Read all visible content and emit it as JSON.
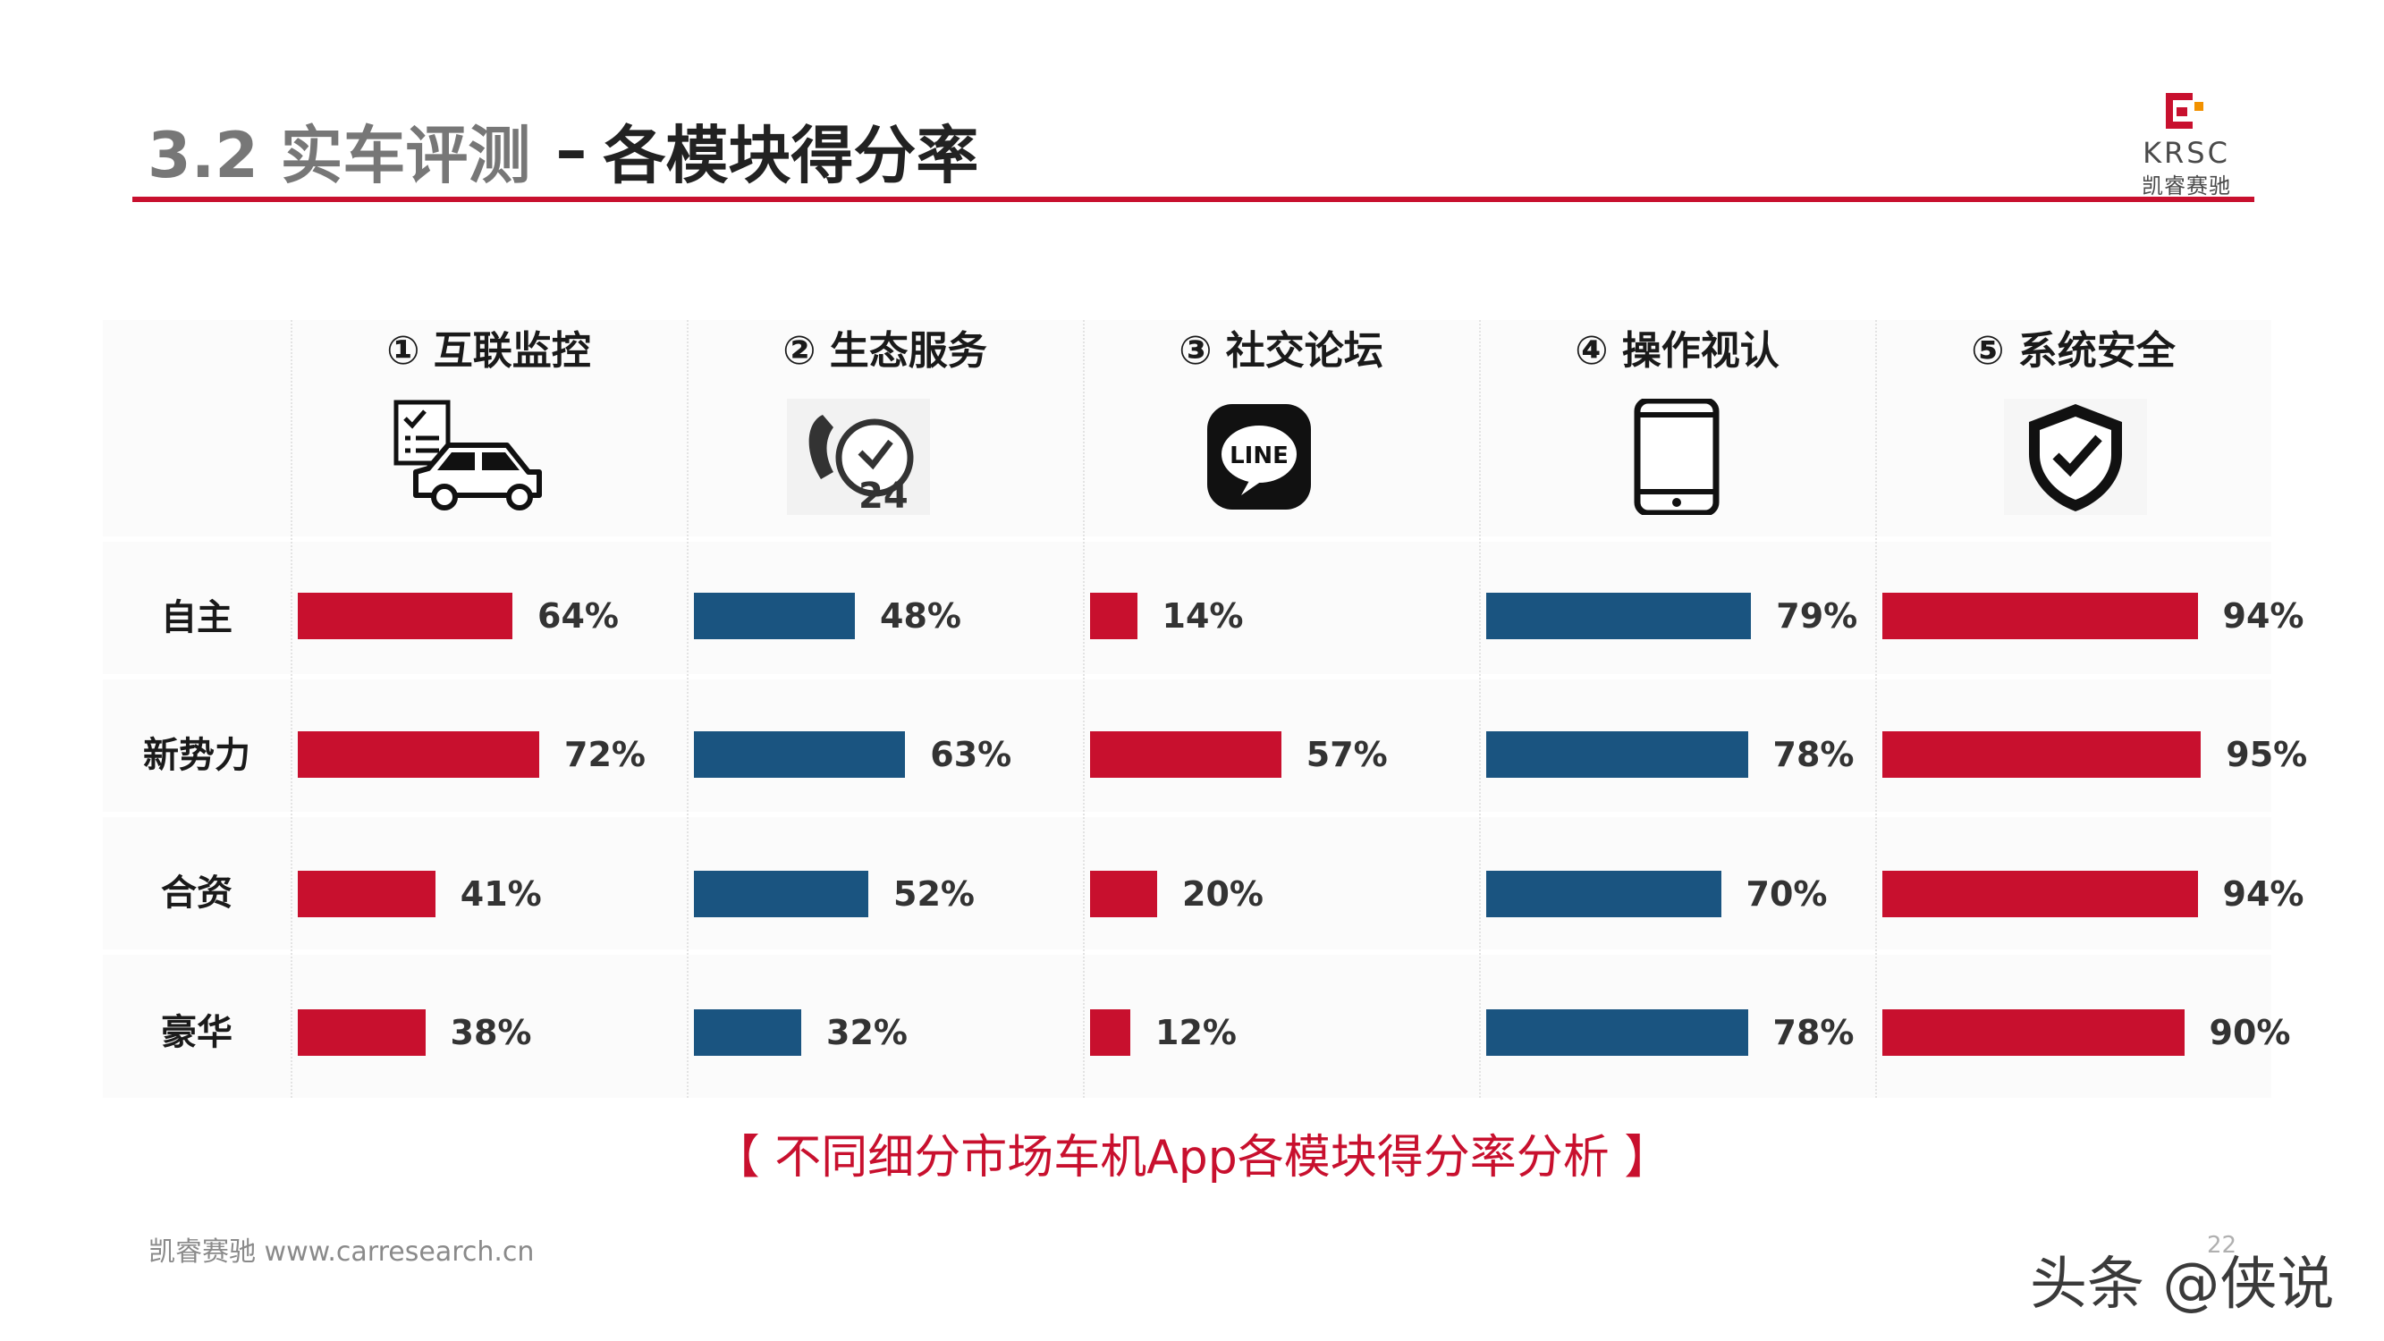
{
  "header": {
    "title_prefix": "3.2 实车评测",
    "title_dash": "–",
    "title_main": "各模块得分率"
  },
  "logo": {
    "text": "KRSC",
    "subtext": "凯睿赛驰"
  },
  "chart_data": {
    "type": "bar",
    "layout": "small-multiples-horizontal",
    "modules": [
      {
        "name": "① 互联监控",
        "icon": "car-checklist-icon",
        "color": "#c8102e"
      },
      {
        "name": "② 生态服务",
        "icon": "24h-phone-service-icon",
        "color": "#1a5480"
      },
      {
        "name": "③ 社交论坛",
        "icon": "line-chat-icon",
        "color": "#c8102e"
      },
      {
        "name": "④ 操作视认",
        "icon": "tablet-icon",
        "color": "#1a5480"
      },
      {
        "name": "⑤ 系统安全",
        "icon": "shield-check-icon",
        "color": "#c8102e"
      }
    ],
    "categories": [
      "自主",
      "新势力",
      "合资",
      "豪华"
    ],
    "series": [
      {
        "name": "① 互联监控",
        "values": [
          64,
          72,
          41,
          38
        ]
      },
      {
        "name": "② 生态服务",
        "values": [
          48,
          63,
          52,
          32
        ]
      },
      {
        "name": "③ 社交论坛",
        "values": [
          14,
          57,
          20,
          12
        ]
      },
      {
        "name": "④ 操作视认",
        "values": [
          79,
          78,
          70,
          78
        ]
      },
      {
        "name": "⑤ 系统安全",
        "values": [
          94,
          95,
          94,
          90
        ]
      }
    ],
    "value_suffix": "%",
    "xlim": [
      0,
      100
    ]
  },
  "caption": "【 不同细分市场车机App各模块得分率分析 】",
  "footer": {
    "source": "凯睿赛驰 www.carresearch.cn",
    "page": "22"
  },
  "watermark": "头条 @侠说"
}
